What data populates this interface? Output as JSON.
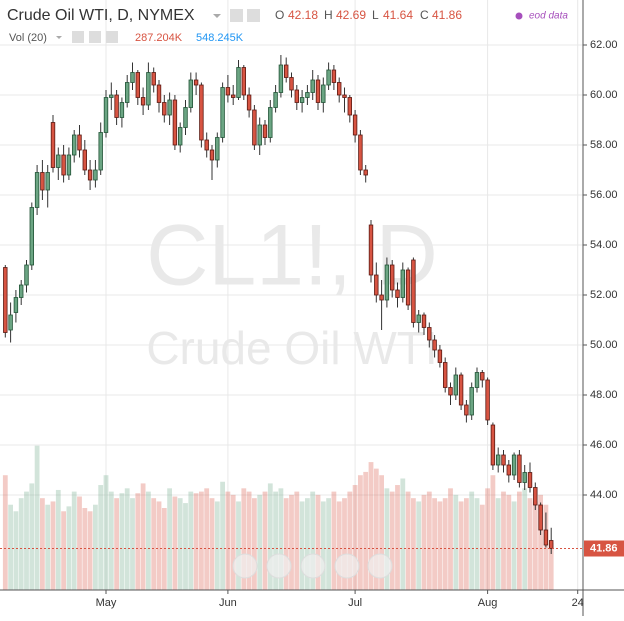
{
  "chart_data": {
    "type": "candlestick",
    "title": "Crude Oil WTI, D, NYMEX",
    "open_label": "O",
    "high_label": "H",
    "low_label": "L",
    "close_label": "C",
    "volume_title": "Vol (20)",
    "volume_label": "287.204K",
    "volume_ma_label": "548.245K",
    "source": "eod data",
    "watermark": "CL1!, D",
    "watermark_subtitle": "Crude Oil WTI",
    "up_color": "#6ba583",
    "down_color": "#d75442",
    "open": [
      53.1,
      50.6,
      51.3,
      51.9,
      52.4,
      53.2,
      55.5,
      56.9,
      56.2,
      58.9,
      57.1,
      57.6,
      56.8,
      57.6,
      58.4,
      57.8,
      57.0,
      56.6,
      57.0,
      58.5,
      59.9,
      60.0,
      59.1,
      59.7,
      60.5,
      60.9,
      59.9,
      59.6,
      60.9,
      60.4,
      59.7,
      59.2,
      59.8,
      58.0,
      58.7,
      59.5,
      60.6,
      60.4,
      58.2,
      57.8,
      57.4,
      58.3,
      60.3,
      60.0,
      59.9,
      61.1,
      60.0,
      59.4,
      58.0,
      58.8,
      58.3,
      59.5,
      60.1,
      61.2,
      60.7,
      60.2,
      59.7,
      59.9,
      60.1,
      60.6,
      59.7,
      60.4,
      61.0,
      60.5,
      60.0,
      59.9,
      59.2,
      58.4,
      57.0,
      54.8,
      52.8,
      52.0,
      51.8,
      53.2,
      52.2,
      51.9,
      53.0,
      53.4,
      50.9,
      51.2,
      50.7,
      50.2,
      49.8,
      49.3,
      48.3,
      48.0,
      48.8,
      47.6,
      47.2,
      48.3,
      48.9,
      48.6,
      46.8,
      45.2,
      45.6,
      45.2,
      44.8,
      45.6,
      44.5,
      44.9,
      44.3,
      43.6,
      42.6,
      42.18
    ],
    "high": [
      53.2,
      51.7,
      52.2,
      52.6,
      53.4,
      55.7,
      57.2,
      57.4,
      57.2,
      59.2,
      57.9,
      58.0,
      57.9,
      58.6,
      58.8,
      58.2,
      57.4,
      57.4,
      58.9,
      60.2,
      60.5,
      60.2,
      59.9,
      60.8,
      61.3,
      61.0,
      60.3,
      61.3,
      61.1,
      60.6,
      60.0,
      60.1,
      60.0,
      58.9,
      59.8,
      60.9,
      60.9,
      60.5,
      58.5,
      58.0,
      58.5,
      60.5,
      60.8,
      60.4,
      61.4,
      61.2,
      60.3,
      59.6,
      59.1,
      59.0,
      59.8,
      60.4,
      61.6,
      61.5,
      60.9,
      60.4,
      60.2,
      60.4,
      61.0,
      60.8,
      60.7,
      61.3,
      61.2,
      60.7,
      60.3,
      60.0,
      59.4,
      58.6,
      57.2,
      55.0,
      53.3,
      52.6,
      53.5,
      53.4,
      52.5,
      53.3,
      53.1,
      53.5,
      51.4,
      51.3,
      50.9,
      50.4,
      50.0,
      49.5,
      48.5,
      49.1,
      48.9,
      47.8,
      48.5,
      49.1,
      49.0,
      48.7,
      46.9,
      45.9,
      45.8,
      45.4,
      45.7,
      45.8,
      45.2,
      45.3,
      44.5,
      43.7,
      43.3,
      42.69
    ],
    "low": [
      50.3,
      50.1,
      50.9,
      51.6,
      52.1,
      53.0,
      55.2,
      55.8,
      55.5,
      56.9,
      56.6,
      56.5,
      56.6,
      57.3,
      57.5,
      56.8,
      56.2,
      56.3,
      56.8,
      58.3,
      59.4,
      58.8,
      58.7,
      59.5,
      60.2,
      59.6,
      59.2,
      59.4,
      60.1,
      59.3,
      58.9,
      58.8,
      57.8,
      57.7,
      58.4,
      59.3,
      60.0,
      57.9,
      57.5,
      56.6,
      57.1,
      58.1,
      59.7,
      59.6,
      59.8,
      59.8,
      59.1,
      57.8,
      57.6,
      58.0,
      58.1,
      59.3,
      59.9,
      60.5,
      59.9,
      59.4,
      59.3,
      59.6,
      59.8,
      59.4,
      59.3,
      60.2,
      60.2,
      59.7,
      59.3,
      58.9,
      58.1,
      56.8,
      56.5,
      52.5,
      51.7,
      50.6,
      51.5,
      51.9,
      51.5,
      51.7,
      51.4,
      50.7,
      50.5,
      50.4,
      49.9,
      49.5,
      49.1,
      48.1,
      47.6,
      47.8,
      47.4,
      46.9,
      47.0,
      48.1,
      48.3,
      46.8,
      45.0,
      44.9,
      44.9,
      44.5,
      44.6,
      44.3,
      44.2,
      44.1,
      43.4,
      42.4,
      41.9,
      41.64
    ],
    "close": [
      50.5,
      51.2,
      51.9,
      52.4,
      53.2,
      55.5,
      56.9,
      56.2,
      56.9,
      57.1,
      57.6,
      56.8,
      57.6,
      58.4,
      57.8,
      57.0,
      56.6,
      57.0,
      58.5,
      59.9,
      60.0,
      59.1,
      59.7,
      60.5,
      60.9,
      59.9,
      59.6,
      60.9,
      60.4,
      59.7,
      59.2,
      59.8,
      58.0,
      58.7,
      59.5,
      60.6,
      60.4,
      58.2,
      57.8,
      57.4,
      58.3,
      60.3,
      60.0,
      59.9,
      61.1,
      60.0,
      59.4,
      58.0,
      58.8,
      58.3,
      59.5,
      60.1,
      61.2,
      60.7,
      60.2,
      59.7,
      59.9,
      60.1,
      60.6,
      59.7,
      60.4,
      61.0,
      60.5,
      60.0,
      59.9,
      59.2,
      58.4,
      57.0,
      56.8,
      52.8,
      52.0,
      51.8,
      53.2,
      52.2,
      51.9,
      53.0,
      51.6,
      50.9,
      51.2,
      50.7,
      50.2,
      49.8,
      49.3,
      48.3,
      48.0,
      48.8,
      47.6,
      47.2,
      48.3,
      48.9,
      48.6,
      47.0,
      45.2,
      45.6,
      45.2,
      44.8,
      45.6,
      44.5,
      44.9,
      44.3,
      43.6,
      42.6,
      42.0,
      41.86
    ],
    "volume": [
      700,
      520,
      480,
      560,
      600,
      650,
      880,
      560,
      520,
      540,
      610,
      480,
      510,
      600,
      570,
      500,
      480,
      520,
      640,
      700,
      600,
      560,
      590,
      620,
      560,
      590,
      650,
      600,
      560,
      540,
      500,
      620,
      570,
      560,
      530,
      600,
      590,
      600,
      620,
      560,
      540,
      660,
      600,
      580,
      540,
      620,
      600,
      560,
      580,
      600,
      650,
      600,
      620,
      560,
      580,
      600,
      540,
      560,
      600,
      580,
      540,
      560,
      600,
      540,
      560,
      600,
      640,
      700,
      720,
      780,
      740,
      700,
      620,
      600,
      640,
      680,
      600,
      560,
      540,
      580,
      600,
      560,
      540,
      560,
      620,
      580,
      540,
      560,
      600,
      560,
      520,
      620,
      700,
      560,
      600,
      580,
      540,
      600,
      620,
      560,
      540,
      580,
      520,
      287.204
    ],
    "xlim": [
      -1,
      109
    ],
    "xticks": [
      {
        "value": 19,
        "label": "May"
      },
      {
        "value": 42,
        "label": "Jun"
      },
      {
        "value": 66,
        "label": "Jul"
      },
      {
        "value": 91,
        "label": "Aug"
      },
      {
        "value": 108,
        "label": "24"
      }
    ],
    "ylim": [
      40.2,
      63.8
    ],
    "yticks": [
      {
        "value": 44,
        "label": "44.00"
      },
      {
        "value": 46,
        "label": "46.00"
      },
      {
        "value": 48,
        "label": "48.00"
      },
      {
        "value": 50,
        "label": "50.00"
      },
      {
        "value": 52,
        "label": "52.00"
      },
      {
        "value": 54,
        "label": "54.00"
      },
      {
        "value": 56,
        "label": "56.00"
      },
      {
        "value": 58,
        "label": "58.00"
      },
      {
        "value": 60,
        "label": "60.00"
      },
      {
        "value": 62,
        "label": "62.00"
      }
    ],
    "y2lim": [
      0,
      1000
    ],
    "grid": true
  }
}
